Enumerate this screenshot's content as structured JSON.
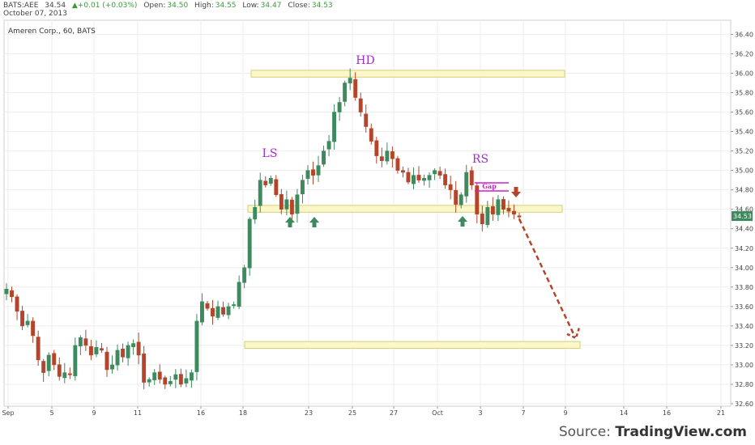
{
  "header": {
    "symbol": "BATS:AEE",
    "price": "34.54",
    "change": "▲+0.01 (+0.03%)",
    "open_label": "Open:",
    "open": "34.50",
    "high_label": "High:",
    "high": "34.55",
    "low_label": "Low:",
    "low": "34.47",
    "close_label": "Close:",
    "close": "34.53",
    "date": "October 07, 2013"
  },
  "chart_title": "Ameren Corp., 60, BATS",
  "source": {
    "prefix": "Source: ",
    "brand": "TradingView.com"
  },
  "chart_data": {
    "type": "candlestick",
    "title": "Ameren Corp., 60, BATS",
    "ylim": [
      32.55,
      36.52
    ],
    "y_ticks": [
      36.4,
      36.2,
      36.0,
      35.8,
      35.6,
      35.4,
      35.2,
      35.0,
      34.8,
      34.6,
      34.4,
      34.2,
      34.0,
      33.8,
      33.6,
      33.4,
      33.2,
      33.0,
      32.8,
      32.6
    ],
    "x_ticks": [
      "Sep",
      "5",
      "9",
      "11",
      "16",
      "18",
      "23",
      "25",
      "27",
      "Oct",
      "3",
      "7",
      "9",
      "14",
      "16",
      "21"
    ],
    "last_price": "34.53",
    "price_series": [
      33.78,
      33.7,
      33.55,
      33.4,
      33.45,
      33.3,
      33.05,
      32.92,
      33.1,
      33.0,
      32.88,
      32.92,
      32.9,
      33.2,
      33.28,
      33.2,
      33.1,
      33.18,
      33.15,
      32.95,
      33.0,
      33.15,
      33.08,
      33.2,
      33.22,
      33.1,
      32.82,
      32.85,
      32.92,
      32.85,
      32.8,
      32.83,
      32.9,
      32.8,
      32.86,
      32.92,
      33.45,
      33.65,
      33.58,
      33.5,
      33.6,
      33.52,
      33.6,
      33.62,
      33.85,
      34.0,
      34.5,
      34.62,
      34.9,
      34.85,
      34.92,
      34.75,
      34.6,
      34.7,
      34.55,
      34.75,
      34.9,
      35.0,
      34.95,
      35.05,
      35.2,
      35.3,
      35.6,
      35.7,
      35.9,
      35.95,
      35.75,
      35.6,
      35.45,
      35.3,
      35.15,
      35.1,
      35.2,
      35.12,
      35.0,
      34.98,
      34.88,
      34.95,
      34.9,
      34.92,
      34.95,
      35.0,
      34.95,
      34.85,
      34.8,
      34.65,
      34.75,
      34.98,
      34.85,
      34.55,
      34.45,
      34.62,
      34.55,
      34.7,
      34.6,
      34.58,
      34.55,
      34.53
    ],
    "zones": [
      {
        "from": 35.96,
        "to": 36.03,
        "x_start": "20",
        "x_end": "9"
      },
      {
        "from": 34.57,
        "to": 34.64,
        "x_start": "20",
        "x_end": "9"
      },
      {
        "from": 33.17,
        "to": 33.24,
        "x_start": "20",
        "x_end": "10"
      }
    ],
    "annotations": [
      {
        "text": "LS",
        "color": "#a030c8"
      },
      {
        "text": "HD",
        "color": "#a030c8"
      },
      {
        "text": "RS",
        "color": "#a030c8"
      },
      {
        "text": "Gap",
        "color": "#cc22cc"
      }
    ],
    "up_arrows": 3,
    "down_arrows": 1,
    "projection": {
      "from": 34.5,
      "to": 33.3,
      "style": "dashed",
      "color": "#b5452a"
    },
    "colors": {
      "up": "#3d8a5f",
      "down": "#b5452a",
      "zone_fill": "#fbf7c8",
      "zone_stroke": "#d6cf78"
    }
  }
}
